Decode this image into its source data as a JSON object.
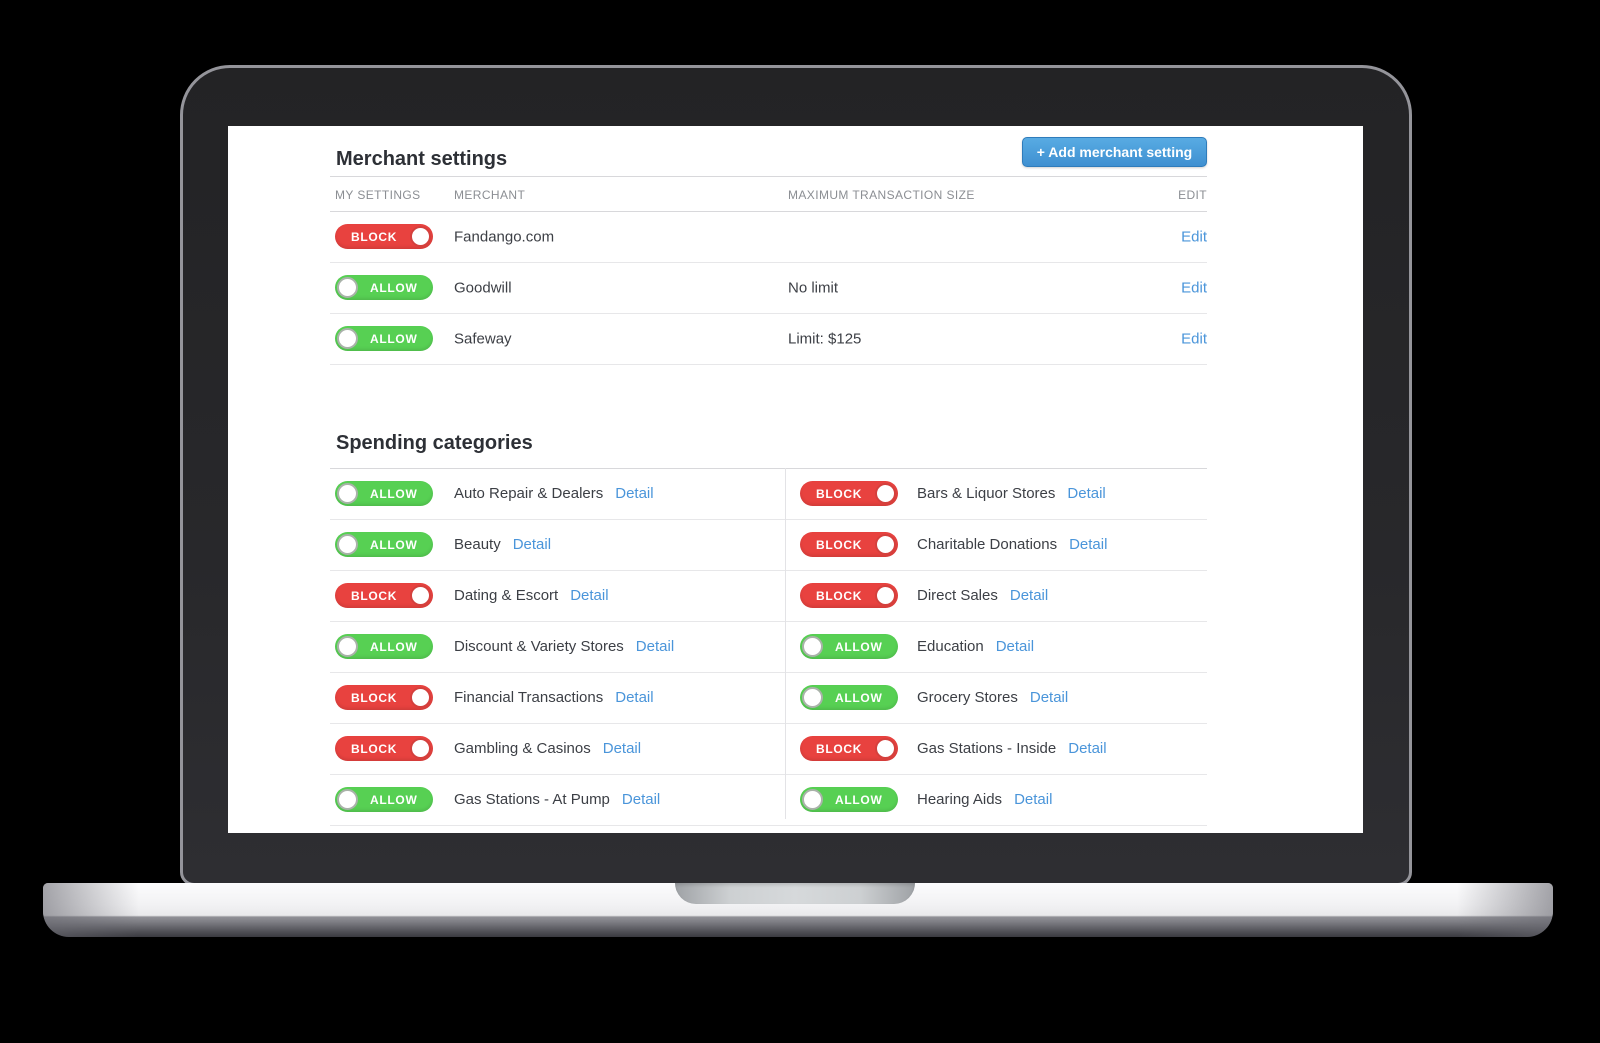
{
  "merchant_settings": {
    "title": "Merchant settings",
    "add_button_label": "+ Add merchant setting",
    "columns": [
      "MY SETTINGS",
      "MERCHANT",
      "MAXIMUM TRANSACTION SIZE",
      "EDIT"
    ],
    "rows": [
      {
        "state": "block",
        "state_label": "BLOCK",
        "merchant": "Fandango.com",
        "max_transaction": "",
        "edit_label": "Edit"
      },
      {
        "state": "allow",
        "state_label": "ALLOW",
        "merchant": "Goodwill",
        "max_transaction": "No limit",
        "edit_label": "Edit"
      },
      {
        "state": "allow",
        "state_label": "ALLOW",
        "merchant": "Safeway",
        "max_transaction": "Limit: $125",
        "edit_label": "Edit"
      }
    ]
  },
  "spending_categories": {
    "title": "Spending categories",
    "detail_label": "Detail",
    "toggle_labels": {
      "allow": "ALLOW",
      "block": "BLOCK"
    },
    "left_column": [
      {
        "state": "allow",
        "label": "Auto Repair & Dealers"
      },
      {
        "state": "allow",
        "label": "Beauty"
      },
      {
        "state": "block",
        "label": "Dating & Escort"
      },
      {
        "state": "allow",
        "label": "Discount & Variety Stores"
      },
      {
        "state": "block",
        "label": "Financial Transactions"
      },
      {
        "state": "block",
        "label": "Gambling & Casinos"
      },
      {
        "state": "allow",
        "label": "Gas Stations - At Pump"
      }
    ],
    "right_column": [
      {
        "state": "block",
        "label": "Bars & Liquor Stores"
      },
      {
        "state": "block",
        "label": "Charitable Donations"
      },
      {
        "state": "block",
        "label": "Direct Sales"
      },
      {
        "state": "allow",
        "label": "Education"
      },
      {
        "state": "allow",
        "label": "Grocery Stores"
      },
      {
        "state": "block",
        "label": "Gas Stations - Inside"
      },
      {
        "state": "allow",
        "label": "Hearing Aids"
      }
    ]
  },
  "colors": {
    "allow_green": "#57d053",
    "block_red": "#e8423f",
    "link_blue": "#4a95da",
    "button_blue": "#459fdd",
    "heading_text": "#2d3036",
    "column_header_gray": "#8b8e93"
  }
}
